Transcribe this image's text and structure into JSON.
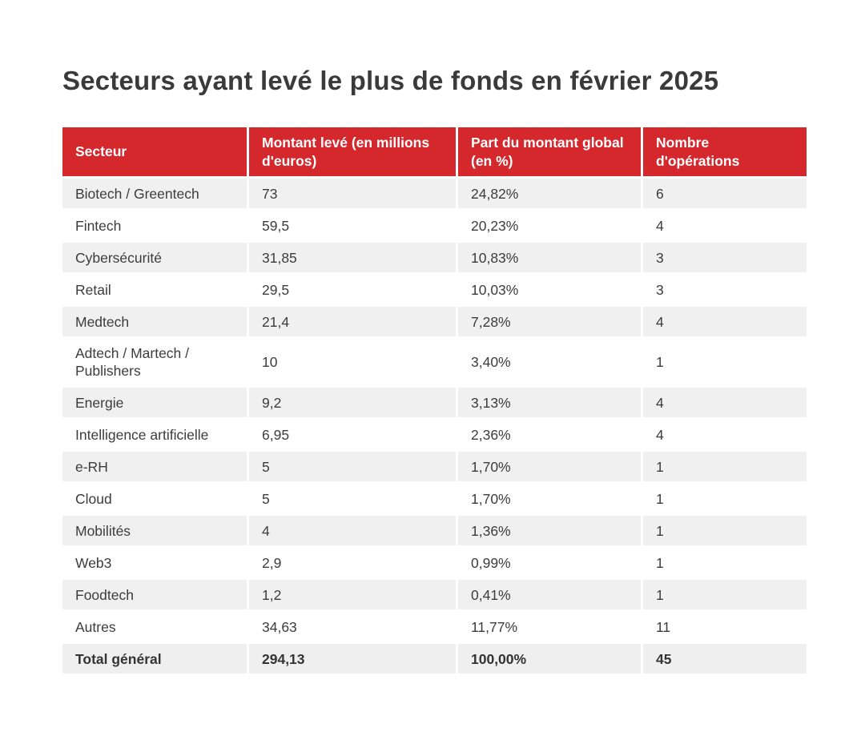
{
  "title": "Secteurs ayant levé le plus de fonds en février 2025",
  "chart_data": {
    "type": "table",
    "title": "Secteurs ayant levé le plus de fonds en février 2025",
    "columns": [
      "Secteur",
      "Montant levé (en millions d'euros)",
      "Part du montant global (en %)",
      "Nombre d'opérations"
    ],
    "rows": [
      [
        "Biotech / Greentech",
        "73",
        "24,82%",
        "6"
      ],
      [
        "Fintech",
        "59,5",
        "20,23%",
        "4"
      ],
      [
        "Cybersécurité",
        "31,85",
        "10,83%",
        "3"
      ],
      [
        "Retail",
        "29,5",
        "10,03%",
        "3"
      ],
      [
        "Medtech",
        "21,4",
        "7,28%",
        "4"
      ],
      [
        "Adtech / Martech / Publishers",
        "10",
        "3,40%",
        "1"
      ],
      [
        "Energie",
        "9,2",
        "3,13%",
        "4"
      ],
      [
        "Intelligence artificielle",
        "6,95",
        "2,36%",
        "4"
      ],
      [
        "e-RH",
        "5",
        "1,70%",
        "1"
      ],
      [
        "Cloud",
        "5",
        "1,70%",
        "1"
      ],
      [
        "Mobilités",
        "4",
        "1,36%",
        "1"
      ],
      [
        "Web3",
        "2,9",
        "0,99%",
        "1"
      ],
      [
        "Foodtech",
        "1,2",
        "0,41%",
        "1"
      ],
      [
        "Autres",
        "34,63",
        "11,77%",
        "11"
      ]
    ],
    "total_row": [
      "Total général",
      "294,13",
      "100,00%",
      "45"
    ]
  },
  "colors": {
    "header_bg": "#d5282d",
    "header_text": "#ffffff",
    "row_alt_bg": "#f0f0f0",
    "total_bg": "#efefef",
    "body_text": "#3c3c3c",
    "title_text": "#3a3a3a"
  }
}
